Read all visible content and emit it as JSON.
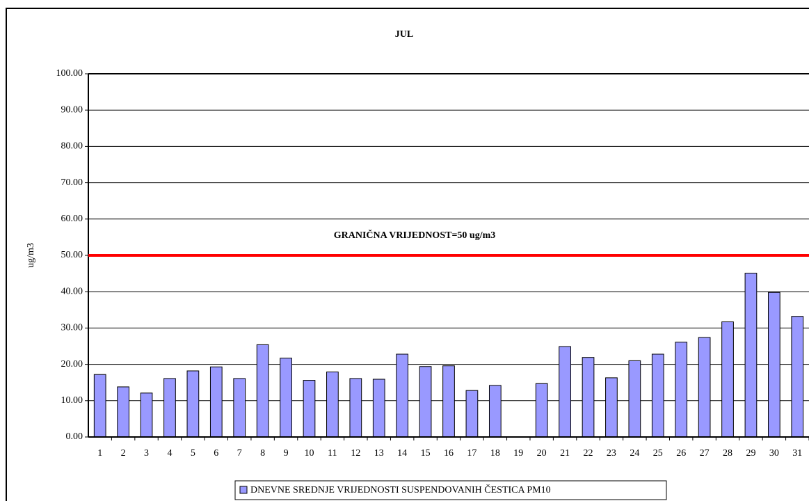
{
  "chart_data": {
    "type": "bar",
    "title": "JUL",
    "y_label": "ug/m3",
    "categories": [
      "1",
      "2",
      "3",
      "4",
      "5",
      "6",
      "7",
      "8",
      "9",
      "10",
      "11",
      "12",
      "13",
      "14",
      "15",
      "16",
      "17",
      "18",
      "19",
      "20",
      "21",
      "22",
      "23",
      "24",
      "25",
      "26",
      "27",
      "28",
      "29",
      "30",
      "31"
    ],
    "series": [
      {
        "name": "DNEVNE SREDNJE VRIJEDNOSTI SUSPENDOVANIH ČESTICA PM10",
        "color": "#9999ff",
        "values": [
          17.2,
          13.8,
          12.1,
          16.1,
          18.2,
          19.3,
          16.1,
          25.4,
          21.7,
          15.6,
          17.9,
          16.1,
          15.9,
          22.8,
          19.4,
          19.6,
          12.8,
          14.2,
          null,
          14.7,
          24.9,
          21.9,
          16.3,
          21.0,
          22.8,
          26.1,
          27.4,
          31.7,
          45.1,
          39.8,
          33.2
        ]
      }
    ],
    "threshold": {
      "value": 50,
      "label": "GRANIČNA VRIJEDNOST=50 ug/m3",
      "color": "#ff0000"
    },
    "ylim": [
      0,
      100
    ],
    "yticks": [
      {
        "value": 0,
        "label": "0.00"
      },
      {
        "value": 10,
        "label": "10.00"
      },
      {
        "value": 20,
        "label": "20.00"
      },
      {
        "value": 30,
        "label": "30.00"
      },
      {
        "value": 40,
        "label": "40.00"
      },
      {
        "value": 50,
        "label": "50.00"
      },
      {
        "value": 60,
        "label": "60.00"
      },
      {
        "value": 70,
        "label": "70.00"
      },
      {
        "value": 80,
        "label": "80.00"
      },
      {
        "value": 90,
        "label": "90.00"
      },
      {
        "value": 100,
        "label": "100.00"
      }
    ],
    "grid": true,
    "legend": "bottom"
  }
}
